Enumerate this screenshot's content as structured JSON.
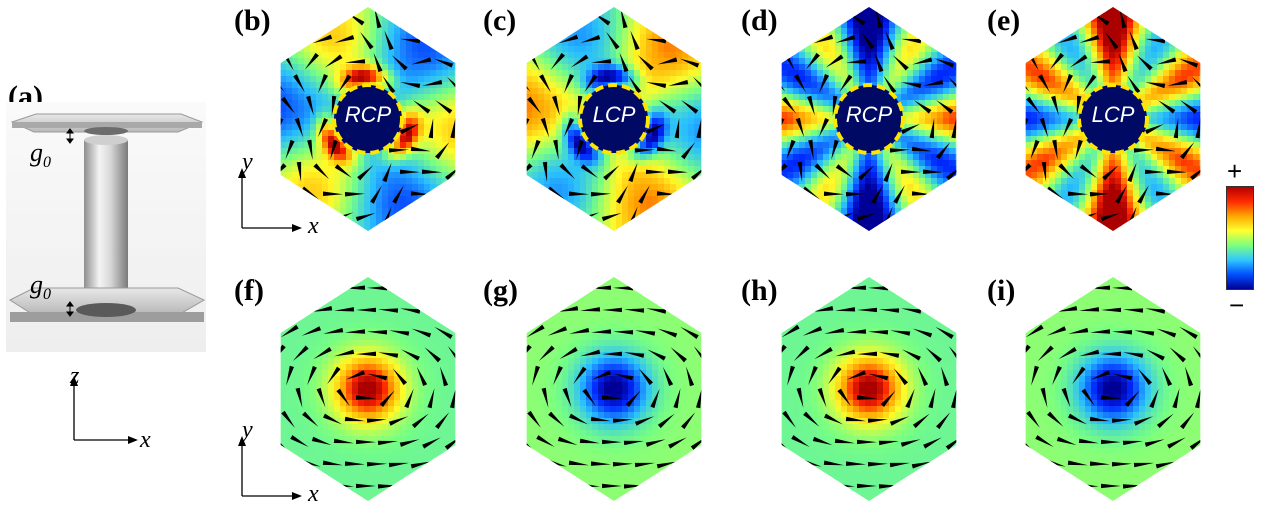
{
  "panels": {
    "a": "(a)",
    "b": "(b)",
    "c": "(c)",
    "d": "(d)",
    "e": "(e)",
    "f": "(f)",
    "g": "(g)",
    "h": "(h)",
    "i": "(i)"
  },
  "structure": {
    "gap_symbol": "g",
    "gap_subscript": "0",
    "axis_vertical": "z",
    "axis_horizontal": "x"
  },
  "field_axes": {
    "vertical": "y",
    "horizontal": "x"
  },
  "source_labels": {
    "b": "RCP",
    "c": "LCP",
    "d": "RCP",
    "e": "LCP"
  },
  "colorbar": {
    "plus": "+",
    "minus": "−",
    "colors": [
      "#b40000",
      "#ff2a00",
      "#ffa800",
      "#ffff30",
      "#7dff7d",
      "#30c8ff",
      "#0050ff",
      "#000096"
    ]
  },
  "maps": {
    "b": {
      "pattern": "lobes3",
      "sign": 1
    },
    "c": {
      "pattern": "lobes3",
      "sign": -1
    },
    "d": {
      "pattern": "lobes6",
      "sign": 1
    },
    "e": {
      "pattern": "lobes6",
      "sign": -1
    },
    "f": {
      "pattern": "center",
      "sign": 1
    },
    "g": {
      "pattern": "center",
      "sign": -1
    },
    "h": {
      "pattern": "center",
      "sign": 1
    },
    "i": {
      "pattern": "center",
      "sign": -1
    }
  }
}
